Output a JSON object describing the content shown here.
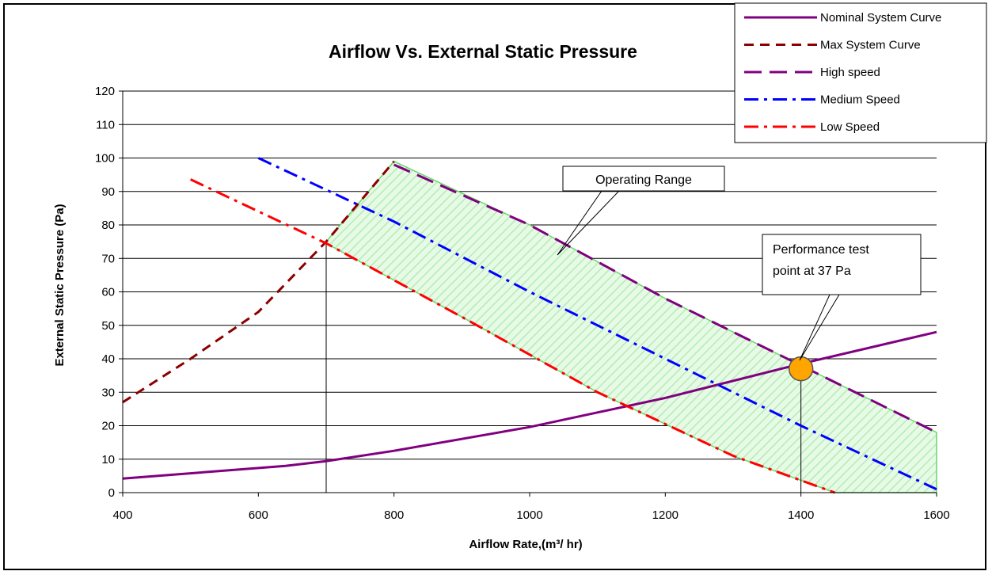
{
  "chart_data": {
    "type": "line",
    "title": "Airflow Vs. External Static Pressure",
    "xlabel": "Airflow Rate,(m³/ hr)",
    "ylabel": "External Static Pressure (Pa)",
    "xlim": [
      400,
      1600
    ],
    "ylim": [
      0,
      120
    ],
    "x_ticks": [
      400,
      600,
      800,
      1000,
      1200,
      1400,
      1600
    ],
    "y_ticks": [
      0,
      10,
      20,
      30,
      40,
      50,
      60,
      70,
      80,
      90,
      100,
      110,
      120
    ],
    "grid": "horizontal",
    "legend_position": "top-right",
    "series": [
      {
        "name": "Nominal System Curve",
        "color": "#800080",
        "dash": "solid",
        "x": [
          400,
          640,
          700,
          800,
          1000,
          1200,
          1400,
          1600
        ],
        "y": [
          4.2,
          8,
          9.4,
          12.5,
          19.6,
          28.3,
          38.5,
          48
        ]
      },
      {
        "name": "Max System Curve",
        "color": "#8B0000",
        "dash": "dash",
        "x": [
          400,
          500,
          600,
          700,
          800
        ],
        "y": [
          27,
          40,
          54,
          75,
          99
        ]
      },
      {
        "name": "High speed",
        "color": "#800080",
        "dash": "longdash",
        "x": [
          800,
          1000,
          1200,
          1400,
          1600
        ],
        "y": [
          98,
          80,
          58,
          38,
          18
        ]
      },
      {
        "name": "Medium Speed",
        "color": "#0000FF",
        "dash": "dashdot",
        "x": [
          600,
          800,
          1000,
          1200,
          1400,
          1600
        ],
        "y": [
          100,
          81,
          60,
          40,
          20,
          1
        ]
      },
      {
        "name": "Low  Speed",
        "color": "#FF0000",
        "dash": "dashdot",
        "x": [
          500,
          700,
          900,
          1100,
          1300,
          1450
        ],
        "y": [
          93.6,
          74.5,
          52.5,
          30,
          11,
          0
        ]
      }
    ],
    "operating_range": {
      "label": "Operating Range",
      "color": "#6ad66a",
      "polygon": [
        [
          700,
          75
        ],
        [
          800,
          99
        ],
        [
          1000,
          80
        ],
        [
          1200,
          58
        ],
        [
          1400,
          38
        ],
        [
          1600,
          18
        ],
        [
          1600,
          0
        ],
        [
          1450,
          0
        ],
        [
          1300,
          11
        ],
        [
          1100,
          30
        ],
        [
          900,
          52.5
        ],
        [
          700,
          74.5
        ]
      ]
    },
    "test_point": {
      "label": "Performance test point  at 37 Pa",
      "label_lines": [
        "Performance test",
        "point  at 37 Pa"
      ],
      "x": 1400,
      "y": 37,
      "color": "#FFA500"
    },
    "reference_lines": [
      {
        "x": 700,
        "y": 75
      },
      {
        "x": 1400,
        "y": 37
      }
    ]
  }
}
